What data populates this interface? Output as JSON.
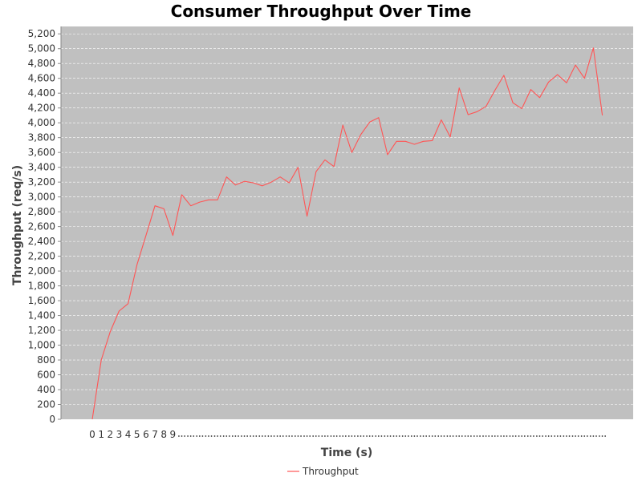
{
  "chart_data": {
    "type": "line",
    "title": "Consumer Throughput Over Time",
    "xlabel": "Time (s)",
    "ylabel": "Throughput (req/s)",
    "ylim": [
      0,
      5300
    ],
    "yticks": [
      0,
      200,
      400,
      600,
      800,
      1000,
      1200,
      1400,
      1600,
      1800,
      2000,
      2200,
      2400,
      2600,
      2800,
      3000,
      3200,
      3400,
      3600,
      3800,
      4000,
      4200,
      4400,
      4600,
      4800,
      5000,
      5200
    ],
    "ytick_labels": [
      "0",
      "200",
      "400",
      "600",
      "800",
      "1,000",
      "1,200",
      "1,400",
      "1,600",
      "1,800",
      "2,000",
      "2,200",
      "2,400",
      "2,600",
      "2,800",
      "3,000",
      "3,200",
      "3,400",
      "3,600",
      "3,800",
      "4,000",
      "4,200",
      "4,400",
      "4,600",
      "4,800",
      "5,000",
      "5,200"
    ],
    "xtick_labels": [
      "0",
      "1",
      "2",
      "3",
      "4",
      "5",
      "6",
      "7",
      "8",
      "9"
    ],
    "grid": true,
    "legend_position": "bottom-center",
    "plot_background": "#c0c0c0",
    "series": [
      {
        "name": "Throughput",
        "color": "#ff5555",
        "x": [
          0,
          1,
          2,
          3,
          4,
          5,
          6,
          7,
          8,
          9,
          10,
          11,
          12,
          13,
          14,
          15,
          16,
          17,
          18,
          19,
          20,
          21,
          22,
          23,
          24,
          25,
          26,
          27,
          28,
          29,
          30,
          31,
          32,
          33,
          34,
          35,
          36,
          37,
          38,
          39,
          40,
          41,
          42,
          43,
          44,
          45,
          46,
          47,
          48,
          49,
          50,
          51,
          52,
          53,
          54,
          55,
          56,
          57
        ],
        "values": [
          0,
          800,
          1180,
          1460,
          1560,
          2090,
          2480,
          2880,
          2840,
          2480,
          3030,
          2880,
          2930,
          2960,
          2960,
          3270,
          3160,
          3210,
          3190,
          3150,
          3200,
          3270,
          3190,
          3400,
          2740,
          3340,
          3500,
          3410,
          3970,
          3600,
          3840,
          4010,
          4070,
          3570,
          3750,
          3750,
          3710,
          3750,
          3760,
          4040,
          3810,
          4470,
          4110,
          4150,
          4220,
          4440,
          4640,
          4270,
          4190,
          4450,
          4340,
          4550,
          4650,
          4540,
          4780,
          4600,
          5010,
          4100
        ]
      }
    ]
  }
}
